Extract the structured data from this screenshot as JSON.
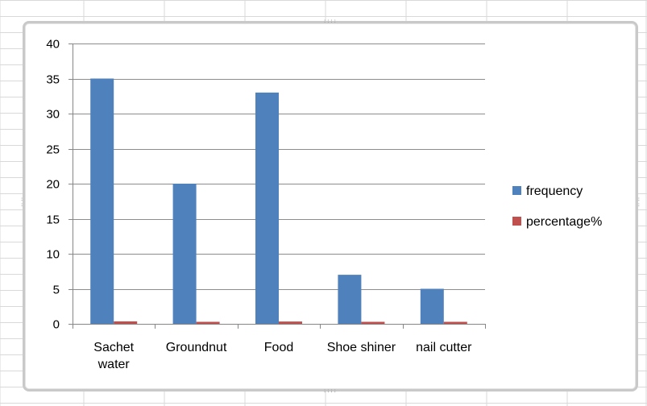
{
  "chart_data": {
    "type": "bar",
    "categories": [
      [
        "Sachet",
        "water"
      ],
      [
        "Groundnut"
      ],
      [
        "Food"
      ],
      [
        "Shoe shiner"
      ],
      [
        "nail cutter"
      ]
    ],
    "series": [
      {
        "name": "frequency",
        "color": "#4f81bd",
        "values": [
          35,
          20,
          33,
          7,
          5
        ]
      },
      {
        "name": "percentage%",
        "color": "#c0504d",
        "values": [
          0.35,
          0.2,
          0.33,
          0.07,
          0.05
        ]
      }
    ],
    "title": "",
    "xlabel": "",
    "ylabel": "",
    "ylim": [
      0,
      40
    ],
    "yticks": [
      "0",
      "5",
      "10",
      "15",
      "20",
      "25",
      "30",
      "35",
      "40"
    ],
    "grid": true,
    "legend_position": "right"
  },
  "colors": {
    "gridline": "#8c8c8c",
    "axis": "#868686",
    "sheet_grid": "#d9d9d9"
  }
}
